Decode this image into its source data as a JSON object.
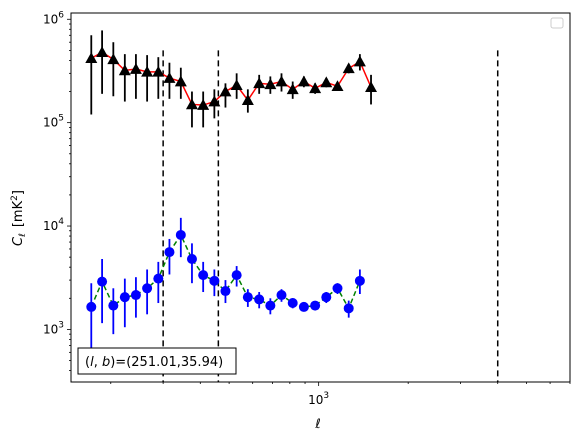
{
  "chart_data": {
    "type": "scatter",
    "title": "",
    "xlabel": "ℓ",
    "ylabel_main": "C",
    "ylabel_sub": "ℓ",
    "ylabel_unit": "[mK",
    "ylabel_unit_sup": "2",
    "ylabel_unit_close": "]",
    "xscale": "log",
    "yscale": "log",
    "xlim": [
      147,
      7000
    ],
    "ylim": [
      310,
      1150000
    ],
    "x_ticks": [
      {
        "value": 1000,
        "base": "10",
        "exp": "3"
      }
    ],
    "y_ticks": [
      {
        "value": 1000,
        "base": "10",
        "exp": "3"
      },
      {
        "value": 10000,
        "base": "10",
        "exp": "4"
      },
      {
        "value": 100000,
        "base": "10",
        "exp": "5"
      },
      {
        "value": 1000000,
        "base": "10",
        "exp": "6"
      }
    ],
    "vlines": [
      300,
      460,
      4000
    ],
    "vline_top": 500000,
    "legend": "top-right",
    "annotation": "(l, b)=(251.01,35.94)",
    "annotation_prefix": "(",
    "annotation_l": "l",
    "annotation_sep": ", ",
    "annotation_b": "b",
    "annotation_suffix": ")=(251.01,35.94)",
    "series": [
      {
        "color": "#ff0000",
        "marker_color": "#000000",
        "marker": "triangle",
        "line_style": "solid",
        "errbar_color": "#000000",
        "points": [
          {
            "x": 172,
            "y": 420000,
            "lo": 120000,
            "hi": 700000
          },
          {
            "x": 187,
            "y": 480000,
            "lo": 190000,
            "hi": 780000
          },
          {
            "x": 204,
            "y": 410000,
            "lo": 180000,
            "hi": 600000
          },
          {
            "x": 223,
            "y": 320000,
            "lo": 160000,
            "hi": 460000
          },
          {
            "x": 243,
            "y": 330000,
            "lo": 170000,
            "hi": 460000
          },
          {
            "x": 265,
            "y": 310000,
            "lo": 160000,
            "hi": 450000
          },
          {
            "x": 289,
            "y": 310000,
            "lo": 170000,
            "hi": 430000
          },
          {
            "x": 315,
            "y": 270000,
            "lo": 170000,
            "hi": 380000
          },
          {
            "x": 344,
            "y": 250000,
            "lo": 170000,
            "hi": 340000
          },
          {
            "x": 375,
            "y": 150000,
            "lo": 90000,
            "hi": 200000
          },
          {
            "x": 409,
            "y": 148000,
            "lo": 90000,
            "hi": 200000
          },
          {
            "x": 446,
            "y": 160000,
            "lo": 110000,
            "hi": 210000
          },
          {
            "x": 486,
            "y": 200000,
            "lo": 140000,
            "hi": 240000
          },
          {
            "x": 530,
            "y": 230000,
            "lo": 170000,
            "hi": 300000
          },
          {
            "x": 578,
            "y": 165000,
            "lo": 125000,
            "hi": 210000
          },
          {
            "x": 631,
            "y": 240000,
            "lo": 190000,
            "hi": 290000
          },
          {
            "x": 688,
            "y": 235000,
            "lo": 190000,
            "hi": 280000
          },
          {
            "x": 750,
            "y": 250000,
            "lo": 200000,
            "hi": 300000
          },
          {
            "x": 818,
            "y": 210000,
            "lo": 170000,
            "hi": 250000
          },
          {
            "x": 892,
            "y": 250000,
            "lo": 220000,
            "hi": 280000
          },
          {
            "x": 973,
            "y": 215000,
            "lo": 190000,
            "hi": 240000
          },
          {
            "x": 1061,
            "y": 245000,
            "lo": 220000,
            "hi": 270000
          },
          {
            "x": 1157,
            "y": 225000,
            "lo": 205000,
            "hi": 245000
          },
          {
            "x": 1262,
            "y": 335000,
            "lo": 300000,
            "hi": 370000
          },
          {
            "x": 1376,
            "y": 390000,
            "lo": 320000,
            "hi": 460000
          },
          {
            "x": 1500,
            "y": 220000,
            "lo": 150000,
            "hi": 290000
          }
        ]
      },
      {
        "color": "#008000",
        "marker_color": "#0000ff",
        "marker": "circle",
        "line_style": "dashed",
        "errbar_color": "#0000ff",
        "points": [
          {
            "x": 172,
            "y": 1650,
            "lo": 650,
            "hi": 2800
          },
          {
            "x": 187,
            "y": 2900,
            "lo": 1150,
            "hi": 4800
          },
          {
            "x": 204,
            "y": 1700,
            "lo": 900,
            "hi": 2500
          },
          {
            "x": 223,
            "y": 2050,
            "lo": 1050,
            "hi": 3100
          },
          {
            "x": 243,
            "y": 2150,
            "lo": 1300,
            "hi": 3200
          },
          {
            "x": 265,
            "y": 2500,
            "lo": 1400,
            "hi": 3800
          },
          {
            "x": 289,
            "y": 3100,
            "lo": 1800,
            "hi": 4500
          },
          {
            "x": 315,
            "y": 5600,
            "lo": 3400,
            "hi": 7500
          },
          {
            "x": 344,
            "y": 8200,
            "lo": 5000,
            "hi": 12000
          },
          {
            "x": 375,
            "y": 4800,
            "lo": 2800,
            "hi": 6800
          },
          {
            "x": 409,
            "y": 3350,
            "lo": 2300,
            "hi": 4500
          },
          {
            "x": 446,
            "y": 2950,
            "lo": 2100,
            "hi": 3800
          },
          {
            "x": 486,
            "y": 2350,
            "lo": 1800,
            "hi": 3000
          },
          {
            "x": 530,
            "y": 3350,
            "lo": 2600,
            "hi": 4100
          },
          {
            "x": 578,
            "y": 2050,
            "lo": 1650,
            "hi": 2450
          },
          {
            "x": 631,
            "y": 1950,
            "lo": 1600,
            "hi": 2300
          },
          {
            "x": 688,
            "y": 1700,
            "lo": 1400,
            "hi": 2000
          },
          {
            "x": 750,
            "y": 2150,
            "lo": 1850,
            "hi": 2450
          },
          {
            "x": 818,
            "y": 1800,
            "lo": 1600,
            "hi": 2000
          },
          {
            "x": 892,
            "y": 1650,
            "lo": 1500,
            "hi": 1800
          },
          {
            "x": 973,
            "y": 1700,
            "lo": 1550,
            "hi": 1850
          },
          {
            "x": 1061,
            "y": 2050,
            "lo": 1800,
            "hi": 2300
          },
          {
            "x": 1157,
            "y": 2500,
            "lo": 2200,
            "hi": 2800
          },
          {
            "x": 1262,
            "y": 1600,
            "lo": 1300,
            "hi": 1900
          },
          {
            "x": 1376,
            "y": 2950,
            "lo": 2200,
            "hi": 3800
          }
        ]
      }
    ]
  }
}
